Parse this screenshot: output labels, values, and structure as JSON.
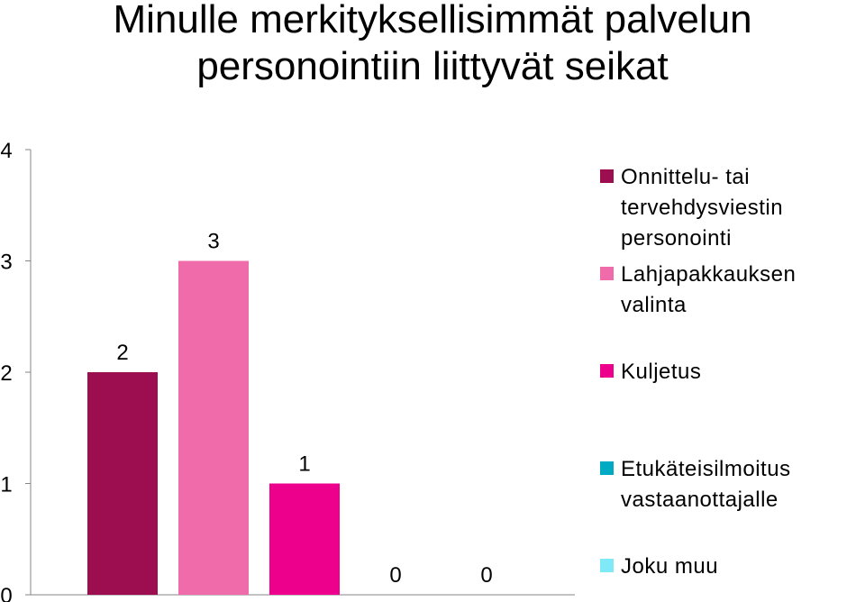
{
  "chart_data": {
    "type": "bar",
    "title_lines": [
      "Minulle merkityksellisimmät palvelun",
      "personointiin liittyvät seikat"
    ],
    "categories": [
      ""
    ],
    "series": [
      {
        "name": "Onnittelu- tai tervehdysviestin personointi",
        "values": [
          2
        ],
        "color": "#9C0E4F"
      },
      {
        "name": "Lahjapakkauksen valinta",
        "values": [
          3
        ],
        "color": "#F06BAA"
      },
      {
        "name": "Kuljetus",
        "values": [
          1
        ],
        "color": "#EC008C"
      },
      {
        "name": "Etukäteisilmoitus vastaanottajalle",
        "values": [
          0
        ],
        "color": "#00AAC2"
      },
      {
        "name": "Joku muu",
        "values": [
          0
        ],
        "color": "#7FE9F7"
      }
    ],
    "legend_lines": [
      [
        "Onnittelu- tai",
        "tervehdysviestin",
        "personointi"
      ],
      [
        "Lahjapakkauksen valinta"
      ],
      [
        "Kuljetus"
      ],
      [
        "Etukäteisilmoitus",
        "vastaanottajalle"
      ],
      [
        "Joku muu"
      ]
    ],
    "data_labels": [
      "2",
      "3",
      "1",
      "0",
      "0"
    ],
    "y_ticks": [
      "0",
      "1",
      "2",
      "3",
      "4"
    ],
    "ylim": [
      0,
      4
    ],
    "grid": false,
    "legend_position": "right",
    "xlabel": "",
    "ylabel": ""
  }
}
